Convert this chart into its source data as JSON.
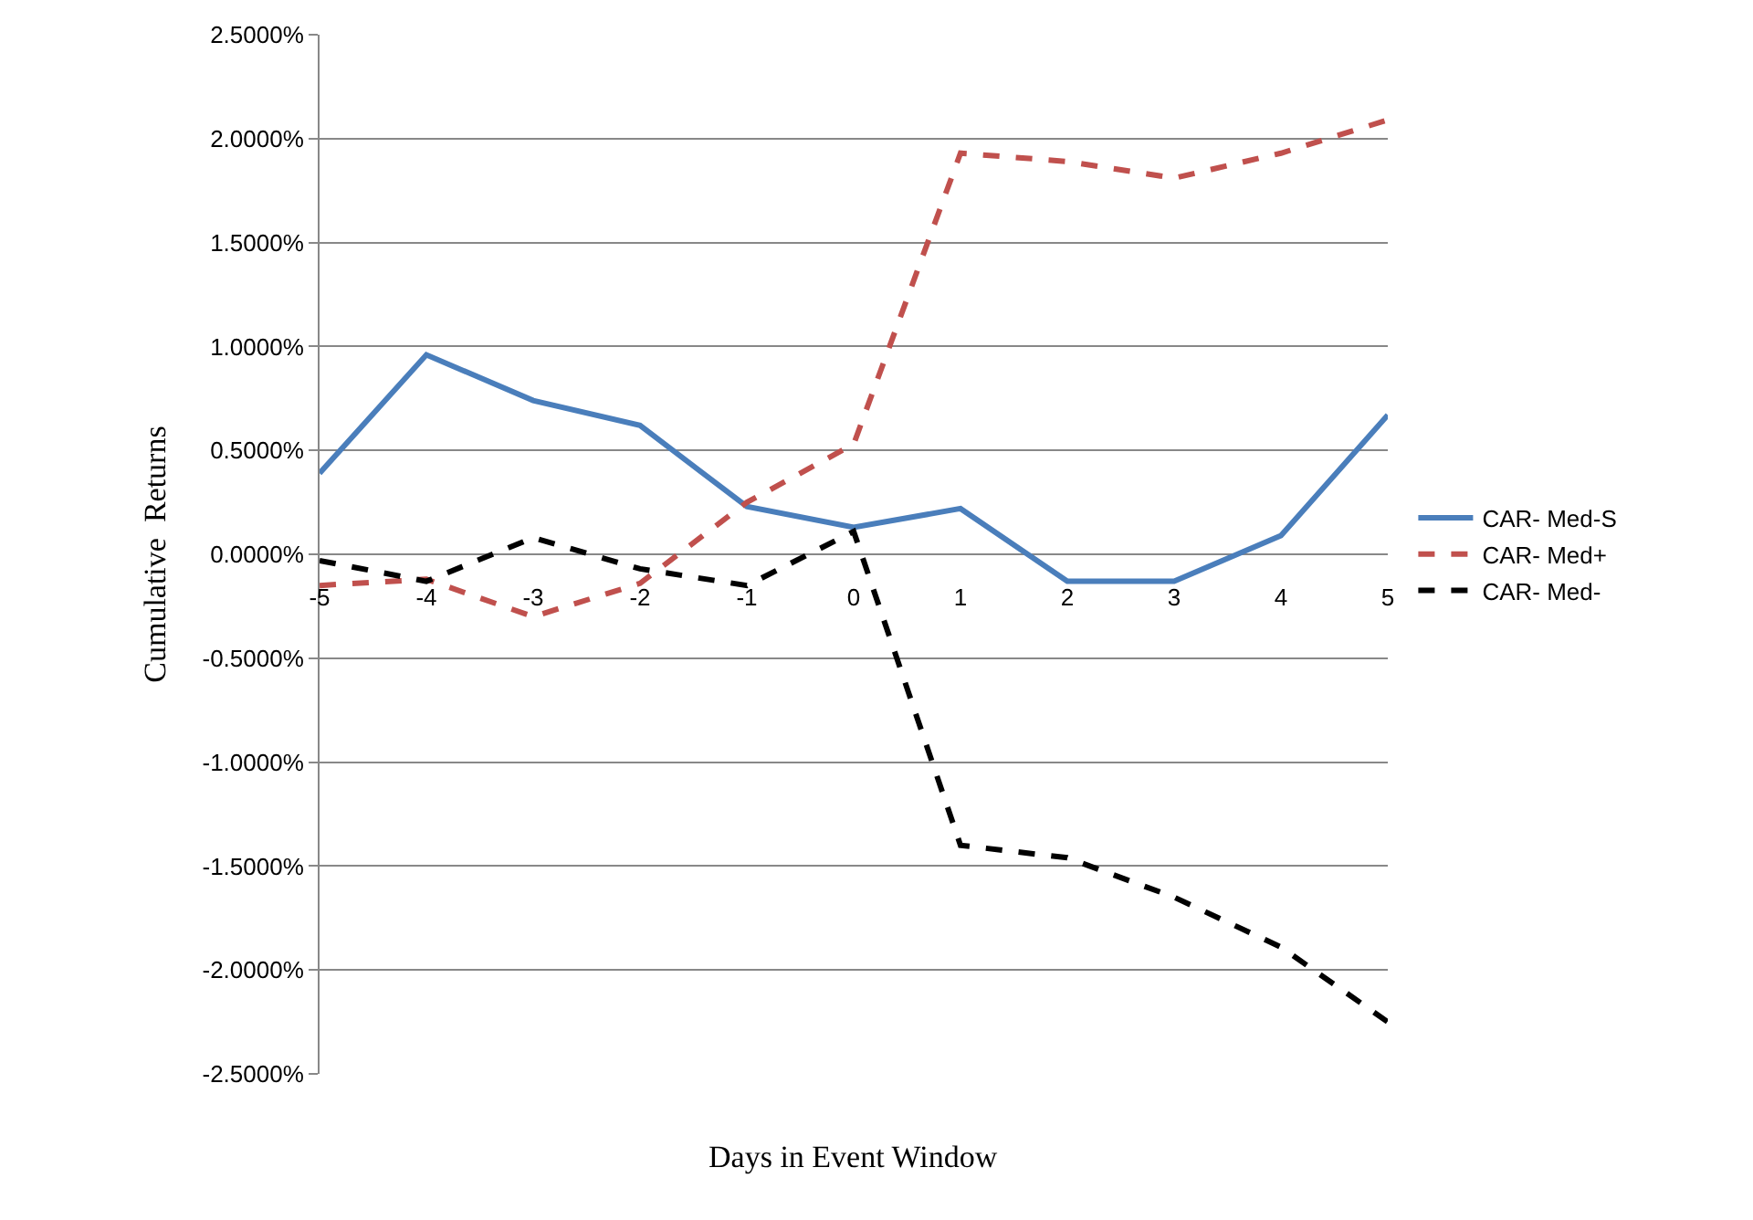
{
  "chart_data": {
    "type": "line",
    "xlabel": "Days in Event Window",
    "ylabel": "Cumulative  Returns",
    "categories": [
      "-5",
      "-4",
      "-3",
      "-2",
      "-1",
      "0",
      "1",
      "2",
      "3",
      "4",
      "5"
    ],
    "series": [
      {
        "name": "CAR- Med-S",
        "color": "#4a7ebb",
        "line_style": "solid",
        "values": [
          0.39,
          0.96,
          0.74,
          0.62,
          0.23,
          0.13,
          0.22,
          -0.13,
          -0.13,
          0.09,
          0.67
        ]
      },
      {
        "name": "CAR- Med+",
        "color": "#c0504d",
        "line_style": "dashed",
        "values": [
          -0.15,
          -0.12,
          -0.3,
          -0.14,
          0.25,
          0.53,
          1.93,
          1.89,
          1.81,
          1.93,
          2.09
        ]
      },
      {
        "name": "CAR- Med-",
        "color": "#000000",
        "line_style": "dashed",
        "values": [
          -0.03,
          -0.13,
          0.08,
          -0.07,
          -0.15,
          0.11,
          -1.4,
          -1.46,
          -1.65,
          -1.89,
          -2.25
        ]
      }
    ],
    "ylim": [
      -2.5,
      2.5
    ],
    "yticks": [
      {
        "value": -2.5,
        "label": "-2.5000%"
      },
      {
        "value": -2,
        "label": "-2.0000%"
      },
      {
        "value": -1.5,
        "label": "-1.5000%"
      },
      {
        "value": -1,
        "label": "-1.0000%"
      },
      {
        "value": -0.5,
        "label": "-0.5000%"
      },
      {
        "value": 0,
        "label": "0.0000%"
      },
      {
        "value": 0.5,
        "label": "0.5000%"
      },
      {
        "value": 1,
        "label": "1.0000%"
      },
      {
        "value": 1.5,
        "label": "1.5000%"
      },
      {
        "value": 2,
        "label": "2.0000%"
      },
      {
        "value": 2.5,
        "label": "2.5000%"
      }
    ],
    "grid": "y",
    "legend": "right",
    "marker": "none"
  }
}
